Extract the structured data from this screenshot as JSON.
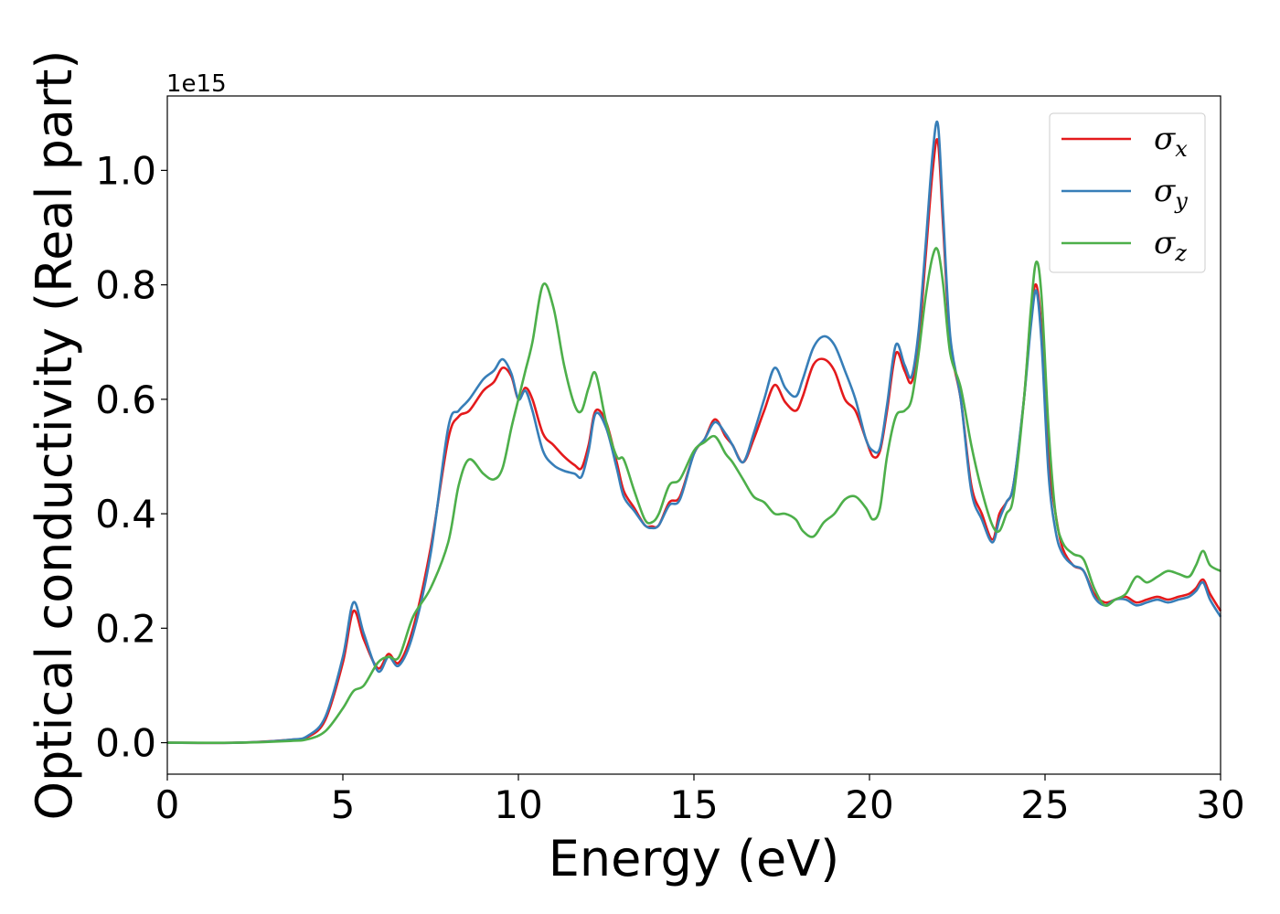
{
  "chart_data": {
    "type": "line",
    "xlabel": "Energy (eV)",
    "ylabel": "Optical conductivity (Real part)",
    "y_offset_label": "1e15",
    "xlim": [
      0,
      30
    ],
    "ylim": [
      -0.055,
      1.13
    ],
    "xticks": [
      0,
      5,
      10,
      15,
      20,
      25,
      30
    ],
    "yticks": [
      0.0,
      0.2,
      0.4,
      0.6,
      0.8,
      1.0
    ],
    "xtick_labels": [
      "0",
      "5",
      "10",
      "15",
      "20",
      "25",
      "30"
    ],
    "ytick_labels": [
      "0.0",
      "0.2",
      "0.4",
      "0.6",
      "0.8",
      "1.0"
    ],
    "grid": false,
    "legend_position": "top-right",
    "series": [
      {
        "name": "σ_x",
        "legend_base": "σ",
        "legend_sub": "x",
        "color": "#e41a1c",
        "x": [
          0,
          2,
          3.5,
          4.0,
          4.5,
          5.0,
          5.3,
          5.6,
          6.0,
          6.3,
          6.6,
          7.0,
          7.5,
          8.0,
          8.3,
          8.6,
          9.0,
          9.3,
          9.55,
          9.8,
          10.0,
          10.2,
          10.4,
          10.7,
          11.0,
          11.3,
          11.6,
          11.8,
          12.0,
          12.2,
          12.5,
          12.8,
          13.0,
          13.3,
          13.6,
          13.8,
          14.0,
          14.3,
          14.6,
          15.0,
          15.3,
          15.6,
          15.9,
          16.1,
          16.4,
          16.7,
          17.0,
          17.3,
          17.6,
          17.9,
          18.1,
          18.4,
          18.7,
          19.0,
          19.3,
          19.6,
          19.9,
          20.1,
          20.3,
          20.5,
          20.75,
          21.0,
          21.2,
          21.4,
          21.6,
          21.8,
          21.95,
          22.1,
          22.3,
          22.6,
          22.9,
          23.2,
          23.5,
          23.7,
          23.9,
          24.1,
          24.4,
          24.6,
          24.75,
          24.9,
          25.1,
          25.3,
          25.5,
          25.8,
          26.1,
          26.4,
          26.7,
          27.0,
          27.3,
          27.6,
          27.9,
          28.2,
          28.5,
          28.8,
          29.1,
          29.3,
          29.5,
          29.7,
          30.0
        ],
        "y": [
          0.0,
          0.0,
          0.005,
          0.01,
          0.04,
          0.14,
          0.23,
          0.18,
          0.13,
          0.155,
          0.14,
          0.2,
          0.34,
          0.53,
          0.57,
          0.58,
          0.615,
          0.63,
          0.655,
          0.64,
          0.6,
          0.62,
          0.6,
          0.54,
          0.52,
          0.5,
          0.485,
          0.48,
          0.52,
          0.58,
          0.56,
          0.49,
          0.44,
          0.41,
          0.38,
          0.378,
          0.38,
          0.42,
          0.43,
          0.505,
          0.53,
          0.565,
          0.535,
          0.52,
          0.49,
          0.53,
          0.58,
          0.625,
          0.595,
          0.58,
          0.605,
          0.66,
          0.67,
          0.65,
          0.6,
          0.58,
          0.53,
          0.5,
          0.51,
          0.58,
          0.68,
          0.65,
          0.63,
          0.7,
          0.85,
          1.0,
          1.05,
          0.9,
          0.7,
          0.6,
          0.45,
          0.4,
          0.355,
          0.4,
          0.42,
          0.45,
          0.6,
          0.75,
          0.8,
          0.72,
          0.5,
          0.4,
          0.34,
          0.31,
          0.3,
          0.26,
          0.245,
          0.25,
          0.255,
          0.245,
          0.25,
          0.255,
          0.25,
          0.255,
          0.26,
          0.27,
          0.285,
          0.26,
          0.23
        ]
      },
      {
        "name": "σ_y",
        "legend_base": "σ",
        "legend_sub": "y",
        "color": "#377eb8",
        "x": [
          0,
          2,
          3.5,
          4.0,
          4.5,
          5.0,
          5.3,
          5.6,
          6.0,
          6.3,
          6.6,
          7.0,
          7.5,
          8.0,
          8.3,
          8.6,
          9.0,
          9.3,
          9.55,
          9.8,
          10.0,
          10.2,
          10.4,
          10.7,
          11.0,
          11.3,
          11.6,
          11.8,
          12.0,
          12.2,
          12.5,
          12.8,
          13.0,
          13.3,
          13.6,
          13.8,
          14.0,
          14.3,
          14.6,
          15.0,
          15.3,
          15.6,
          15.9,
          16.1,
          16.4,
          16.7,
          17.0,
          17.3,
          17.6,
          17.9,
          18.1,
          18.4,
          18.7,
          19.0,
          19.3,
          19.6,
          19.9,
          20.1,
          20.3,
          20.5,
          20.75,
          21.0,
          21.2,
          21.4,
          21.6,
          21.8,
          21.95,
          22.1,
          22.3,
          22.6,
          22.9,
          23.2,
          23.5,
          23.7,
          23.9,
          24.1,
          24.4,
          24.6,
          24.75,
          24.9,
          25.1,
          25.3,
          25.5,
          25.8,
          26.1,
          26.4,
          26.7,
          27.0,
          27.3,
          27.6,
          27.9,
          28.2,
          28.5,
          28.8,
          29.1,
          29.3,
          29.5,
          29.7,
          30.0
        ],
        "y": [
          0.0,
          0.0,
          0.005,
          0.012,
          0.045,
          0.15,
          0.245,
          0.19,
          0.125,
          0.15,
          0.135,
          0.19,
          0.33,
          0.55,
          0.58,
          0.6,
          0.635,
          0.65,
          0.67,
          0.645,
          0.6,
          0.615,
          0.58,
          0.51,
          0.485,
          0.475,
          0.47,
          0.465,
          0.51,
          0.575,
          0.55,
          0.48,
          0.43,
          0.405,
          0.38,
          0.375,
          0.38,
          0.415,
          0.425,
          0.505,
          0.53,
          0.56,
          0.54,
          0.52,
          0.49,
          0.54,
          0.6,
          0.655,
          0.62,
          0.605,
          0.635,
          0.69,
          0.71,
          0.695,
          0.65,
          0.6,
          0.53,
          0.51,
          0.515,
          0.59,
          0.695,
          0.66,
          0.64,
          0.72,
          0.87,
          1.03,
          1.08,
          0.92,
          0.71,
          0.6,
          0.44,
          0.39,
          0.35,
          0.39,
          0.42,
          0.45,
          0.6,
          0.73,
          0.79,
          0.7,
          0.47,
          0.37,
          0.33,
          0.31,
          0.3,
          0.255,
          0.24,
          0.25,
          0.25,
          0.24,
          0.245,
          0.25,
          0.245,
          0.25,
          0.255,
          0.265,
          0.28,
          0.25,
          0.22
        ]
      },
      {
        "name": "σ_z",
        "legend_base": "σ",
        "legend_sub": "z",
        "color": "#4daf4a",
        "x": [
          0,
          2,
          3.5,
          4.0,
          4.5,
          5.0,
          5.3,
          5.6,
          6.0,
          6.3,
          6.6,
          7.0,
          7.5,
          8.0,
          8.3,
          8.6,
          9.0,
          9.3,
          9.55,
          9.8,
          10.0,
          10.2,
          10.4,
          10.7,
          11.0,
          11.3,
          11.6,
          11.8,
          12.0,
          12.2,
          12.5,
          12.8,
          13.0,
          13.3,
          13.6,
          13.8,
          14.0,
          14.3,
          14.6,
          15.0,
          15.3,
          15.6,
          15.9,
          16.1,
          16.4,
          16.7,
          17.0,
          17.3,
          17.6,
          17.9,
          18.1,
          18.4,
          18.7,
          19.0,
          19.3,
          19.6,
          19.9,
          20.1,
          20.3,
          20.5,
          20.75,
          21.0,
          21.2,
          21.4,
          21.6,
          21.8,
          21.95,
          22.1,
          22.3,
          22.6,
          22.9,
          23.2,
          23.5,
          23.7,
          23.9,
          24.1,
          24.4,
          24.6,
          24.75,
          24.9,
          25.1,
          25.3,
          25.5,
          25.8,
          26.1,
          26.4,
          26.7,
          27.0,
          27.3,
          27.6,
          27.9,
          28.2,
          28.5,
          28.8,
          29.1,
          29.3,
          29.5,
          29.7,
          30.0
        ],
        "y": [
          0.0,
          0.0,
          0.003,
          0.006,
          0.02,
          0.06,
          0.09,
          0.1,
          0.14,
          0.15,
          0.15,
          0.22,
          0.27,
          0.35,
          0.45,
          0.495,
          0.47,
          0.46,
          0.48,
          0.55,
          0.6,
          0.65,
          0.7,
          0.8,
          0.76,
          0.66,
          0.59,
          0.58,
          0.62,
          0.645,
          0.56,
          0.5,
          0.495,
          0.44,
          0.39,
          0.385,
          0.4,
          0.45,
          0.46,
          0.51,
          0.525,
          0.535,
          0.505,
          0.49,
          0.46,
          0.43,
          0.42,
          0.4,
          0.4,
          0.39,
          0.37,
          0.36,
          0.385,
          0.4,
          0.425,
          0.43,
          0.41,
          0.39,
          0.41,
          0.5,
          0.57,
          0.58,
          0.6,
          0.68,
          0.78,
          0.85,
          0.86,
          0.8,
          0.68,
          0.62,
          0.52,
          0.44,
          0.38,
          0.37,
          0.4,
          0.43,
          0.6,
          0.76,
          0.84,
          0.78,
          0.55,
          0.4,
          0.35,
          0.33,
          0.32,
          0.27,
          0.24,
          0.25,
          0.26,
          0.29,
          0.28,
          0.29,
          0.3,
          0.295,
          0.29,
          0.31,
          0.335,
          0.31,
          0.3
        ]
      }
    ]
  }
}
